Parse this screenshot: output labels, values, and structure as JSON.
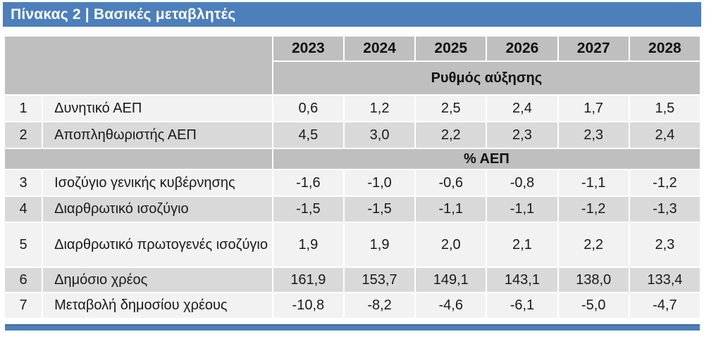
{
  "title": "Πίνακας 2 | Βασικές μεταβλητές",
  "colors": {
    "accent_blue": "#4d7fbb",
    "header_gray": "#bfbfbf",
    "row_light": "#f2f2f2",
    "row_dark": "#d9d9d9",
    "text": "#1a1a1a",
    "title_text": "#ffffff"
  },
  "table": {
    "years": [
      "2023",
      "2024",
      "2025",
      "2026",
      "2027",
      "2028"
    ],
    "band_growth": "Ρυθμός αύξησης",
    "band_pct": "% ΑΕΠ",
    "rows": [
      {
        "num": "1",
        "label": "Δυνητικό ΑΕΠ",
        "values": [
          "0,6",
          "1,2",
          "2,5",
          "2,4",
          "1,7",
          "1,5"
        ]
      },
      {
        "num": "2",
        "label": "Αποπληθωριστής ΑΕΠ",
        "values": [
          "4,5",
          "3,0",
          "2,2",
          "2,3",
          "2,3",
          "2,4"
        ]
      },
      {
        "num": "3",
        "label": "Ισοζύγιο γενικής κυβέρνησης",
        "values": [
          "-1,6",
          "-1,0",
          "-0,6",
          "-0,8",
          "-1,1",
          "-1,2"
        ]
      },
      {
        "num": "4",
        "label": "Διαρθρωτικό ισοζύγιο",
        "values": [
          "-1,5",
          "-1,5",
          "-1,1",
          "-1,1",
          "-1,2",
          "-1,3"
        ]
      },
      {
        "num": "5",
        "label": "Διαρθρωτικό πρωτογενές ισοζύγιο",
        "values": [
          "1,9",
          "1,9",
          "2,0",
          "2,1",
          "2,2",
          "2,3"
        ]
      },
      {
        "num": "6",
        "label": "Δημόσιο χρέος",
        "values": [
          "161,9",
          "153,7",
          "149,1",
          "143,1",
          "138,0",
          "133,4"
        ]
      },
      {
        "num": "7",
        "label": "Μεταβολή δημοσίου χρέους",
        "values": [
          "-10,8",
          "-8,2",
          "-4,6",
          "-6,1",
          "-5,0",
          "-4,7"
        ]
      }
    ]
  }
}
